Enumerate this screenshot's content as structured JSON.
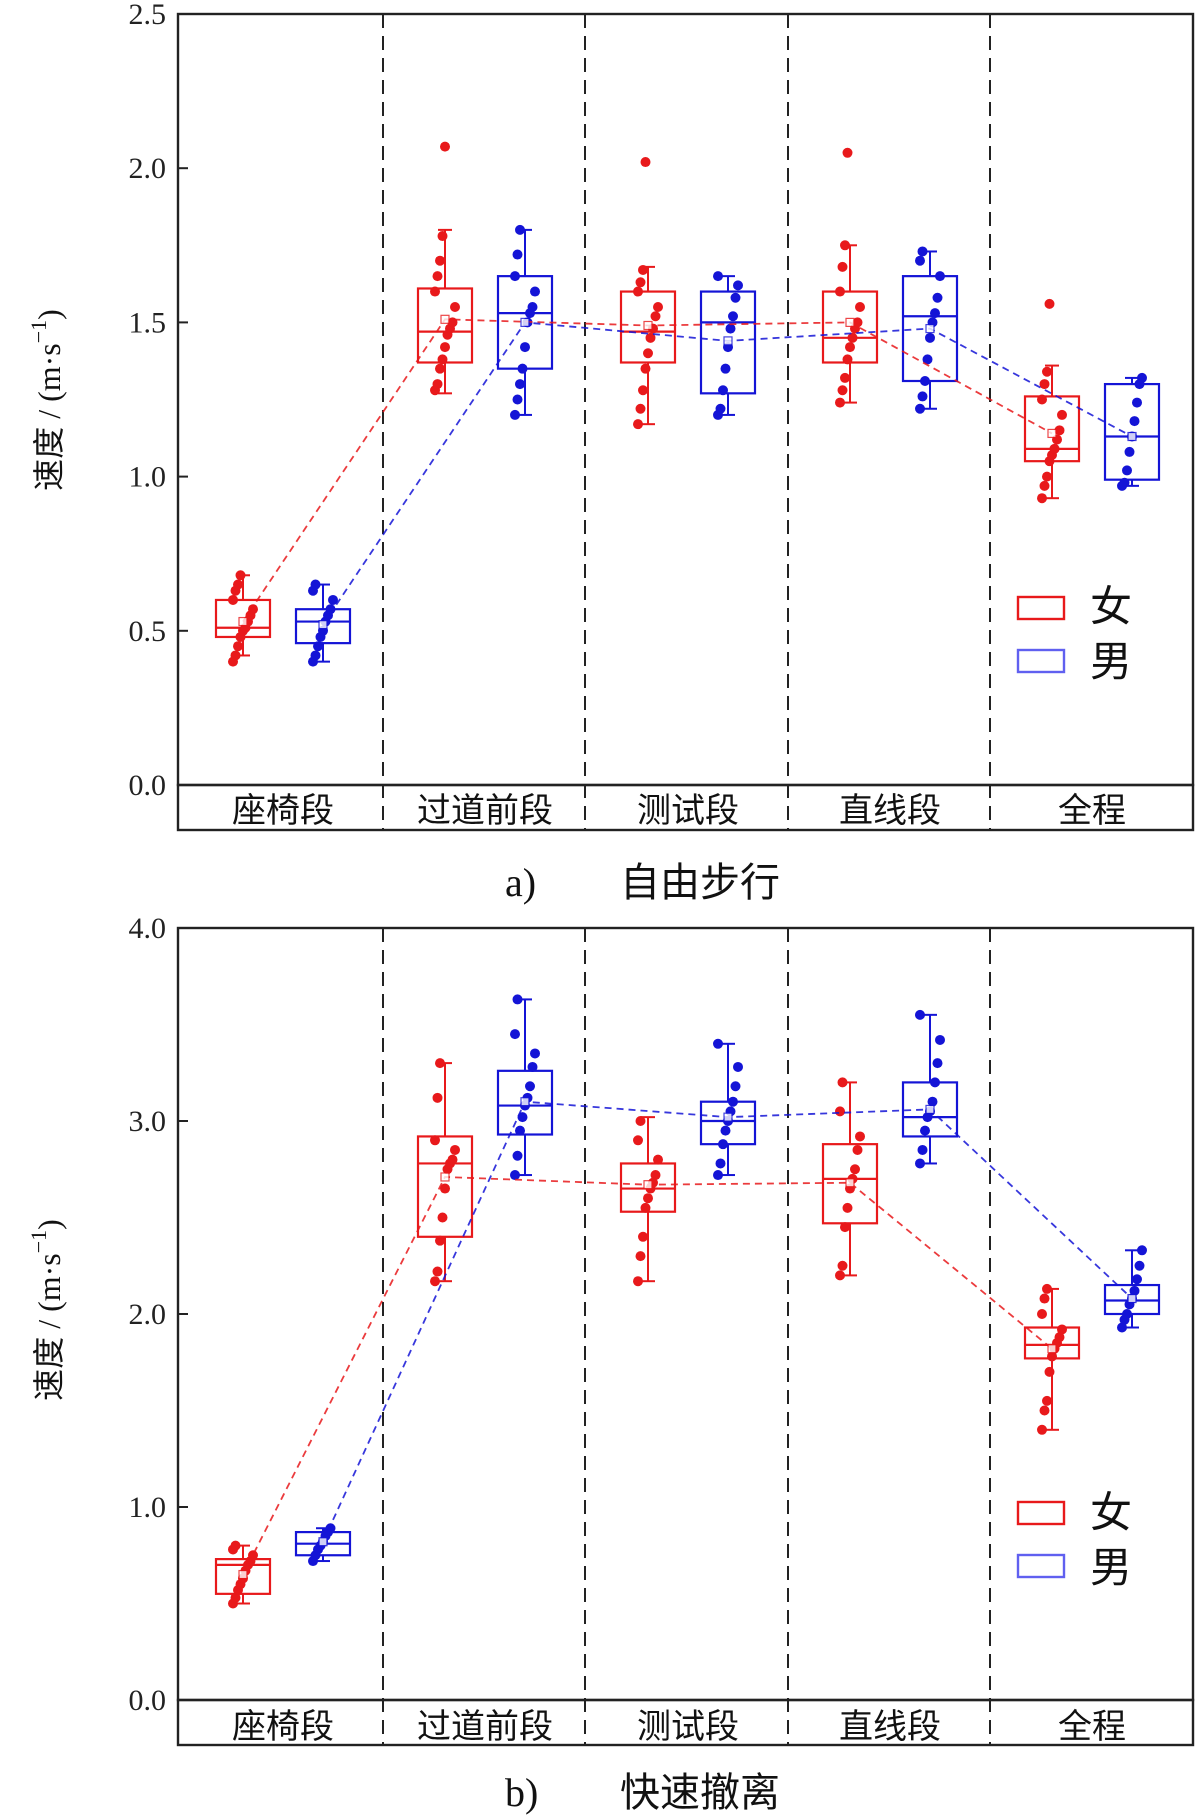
{
  "colors": {
    "female": "#e8191b",
    "male": "#1414d6",
    "axis": "#222222"
  },
  "chart_data": [
    {
      "type": "box",
      "caption_label": "a)",
      "caption_title": "自由步行",
      "ylabel": "速度 / (m·s",
      "ylabel_sup": "−1",
      "ylabel_close": ")",
      "ylim": [
        0.0,
        2.5
      ],
      "yticks": [
        "0.0",
        "0.5",
        "1.0",
        "1.5",
        "2.0",
        "2.5"
      ],
      "categories": [
        "座椅段",
        "过道前段",
        "测试段",
        "直线段",
        "全程"
      ],
      "legend": [
        "女",
        "男"
      ],
      "series": [
        {
          "name": "女",
          "boxes": [
            {
              "min": 0.42,
              "q1": 0.48,
              "median": 0.51,
              "q3": 0.6,
              "max": 0.68,
              "mean": 0.53
            },
            {
              "min": 1.27,
              "q1": 1.37,
              "median": 1.47,
              "q3": 1.61,
              "max": 1.8,
              "mean": 1.51
            },
            {
              "min": 1.17,
              "q1": 1.37,
              "median": 1.47,
              "q3": 1.6,
              "max": 1.68,
              "mean": 1.49
            },
            {
              "min": 1.24,
              "q1": 1.37,
              "median": 1.45,
              "q3": 1.6,
              "max": 1.75,
              "mean": 1.5
            },
            {
              "min": 0.93,
              "q1": 1.05,
              "median": 1.09,
              "q3": 1.26,
              "max": 1.36,
              "mean": 1.14
            }
          ],
          "points": [
            [
              0.4,
              0.42,
              0.45,
              0.48,
              0.5,
              0.51,
              0.53,
              0.55,
              0.57,
              0.6,
              0.63,
              0.65,
              0.68
            ],
            [
              1.28,
              1.3,
              1.35,
              1.38,
              1.42,
              1.46,
              1.48,
              1.5,
              1.55,
              1.6,
              1.65,
              1.7,
              1.78,
              2.07
            ],
            [
              1.17,
              1.22,
              1.28,
              1.35,
              1.4,
              1.45,
              1.48,
              1.52,
              1.55,
              1.6,
              1.63,
              1.67,
              2.02
            ],
            [
              1.24,
              1.28,
              1.32,
              1.38,
              1.42,
              1.45,
              1.48,
              1.5,
              1.55,
              1.6,
              1.68,
              1.75,
              2.05
            ],
            [
              0.93,
              0.97,
              1.0,
              1.05,
              1.07,
              1.09,
              1.12,
              1.15,
              1.2,
              1.25,
              1.3,
              1.34,
              1.56
            ]
          ]
        },
        {
          "name": "男",
          "boxes": [
            {
              "min": 0.4,
              "q1": 0.46,
              "median": 0.53,
              "q3": 0.57,
              "max": 0.65,
              "mean": 0.52
            },
            {
              "min": 1.2,
              "q1": 1.35,
              "median": 1.53,
              "q3": 1.65,
              "max": 1.8,
              "mean": 1.5
            },
            {
              "min": 1.2,
              "q1": 1.27,
              "median": 1.5,
              "q3": 1.6,
              "max": 1.65,
              "mean": 1.44
            },
            {
              "min": 1.22,
              "q1": 1.31,
              "median": 1.52,
              "q3": 1.65,
              "max": 1.73,
              "mean": 1.48
            },
            {
              "min": 0.97,
              "q1": 0.99,
              "median": 1.13,
              "q3": 1.3,
              "max": 1.32,
              "mean": 1.13
            }
          ],
          "points": [
            [
              0.4,
              0.42,
              0.45,
              0.48,
              0.5,
              0.53,
              0.55,
              0.57,
              0.6,
              0.63,
              0.65
            ],
            [
              1.2,
              1.25,
              1.3,
              1.35,
              1.42,
              1.5,
              1.53,
              1.55,
              1.6,
              1.65,
              1.72,
              1.8
            ],
            [
              1.2,
              1.22,
              1.28,
              1.35,
              1.42,
              1.48,
              1.52,
              1.58,
              1.62,
              1.65
            ],
            [
              1.22,
              1.26,
              1.31,
              1.38,
              1.45,
              1.5,
              1.53,
              1.58,
              1.65,
              1.7,
              1.73
            ],
            [
              0.97,
              0.98,
              1.02,
              1.08,
              1.13,
              1.18,
              1.24,
              1.3,
              1.32
            ]
          ]
        }
      ]
    },
    {
      "type": "box",
      "caption_label": "b)",
      "caption_title": "快速撤离",
      "ylabel": "速度 / (m·s",
      "ylabel_sup": "−1",
      "ylabel_close": ")",
      "ylim": [
        0.0,
        4.0
      ],
      "yticks": [
        "0.0",
        "1.0",
        "2.0",
        "3.0",
        "4.0"
      ],
      "categories": [
        "座椅段",
        "过道前段",
        "测试段",
        "直线段",
        "全程"
      ],
      "legend": [
        "女",
        "男"
      ],
      "series": [
        {
          "name": "女",
          "boxes": [
            {
              "min": 0.5,
              "q1": 0.55,
              "median": 0.7,
              "q3": 0.73,
              "max": 0.8,
              "mean": 0.65
            },
            {
              "min": 2.17,
              "q1": 2.4,
              "median": 2.78,
              "q3": 2.92,
              "max": 3.3,
              "mean": 2.71
            },
            {
              "min": 2.17,
              "q1": 2.53,
              "median": 2.65,
              "q3": 2.78,
              "max": 3.02,
              "mean": 2.67
            },
            {
              "min": 2.2,
              "q1": 2.47,
              "median": 2.7,
              "q3": 2.88,
              "max": 3.2,
              "mean": 2.68
            },
            {
              "min": 1.4,
              "q1": 1.77,
              "median": 1.84,
              "q3": 1.93,
              "max": 2.13,
              "mean": 1.82
            }
          ],
          "points": [
            [
              0.5,
              0.53,
              0.57,
              0.6,
              0.63,
              0.67,
              0.7,
              0.72,
              0.75,
              0.78,
              0.8
            ],
            [
              2.17,
              2.22,
              2.38,
              2.5,
              2.65,
              2.75,
              2.78,
              2.8,
              2.85,
              2.9,
              3.12,
              3.3
            ],
            [
              2.17,
              2.3,
              2.4,
              2.55,
              2.6,
              2.65,
              2.68,
              2.72,
              2.8,
              2.9,
              3.0
            ],
            [
              2.2,
              2.25,
              2.45,
              2.55,
              2.65,
              2.7,
              2.75,
              2.85,
              2.92,
              3.05,
              3.2
            ],
            [
              1.4,
              1.5,
              1.55,
              1.7,
              1.78,
              1.82,
              1.85,
              1.88,
              1.92,
              2.0,
              2.08,
              2.13
            ]
          ]
        },
        {
          "name": "男",
          "boxes": [
            {
              "min": 0.72,
              "q1": 0.75,
              "median": 0.81,
              "q3": 0.87,
              "max": 0.89,
              "mean": 0.82
            },
            {
              "min": 2.72,
              "q1": 2.93,
              "median": 3.08,
              "q3": 3.26,
              "max": 3.63,
              "mean": 3.1
            },
            {
              "min": 2.72,
              "q1": 2.88,
              "median": 3.0,
              "q3": 3.1,
              "max": 3.4,
              "mean": 3.02
            },
            {
              "min": 2.78,
              "q1": 2.92,
              "median": 3.02,
              "q3": 3.2,
              "max": 3.55,
              "mean": 3.06
            },
            {
              "min": 1.93,
              "q1": 2.0,
              "median": 2.07,
              "q3": 2.15,
              "max": 2.33,
              "mean": 2.08
            }
          ],
          "points": [
            [
              0.72,
              0.75,
              0.78,
              0.8,
              0.82,
              0.85,
              0.87,
              0.89
            ],
            [
              2.72,
              2.82,
              2.95,
              3.02,
              3.08,
              3.12,
              3.18,
              3.28,
              3.35,
              3.45,
              3.63
            ],
            [
              2.72,
              2.78,
              2.88,
              2.95,
              3.0,
              3.05,
              3.1,
              3.18,
              3.28,
              3.4
            ],
            [
              2.78,
              2.85,
              2.95,
              3.02,
              3.05,
              3.1,
              3.2,
              3.3,
              3.42,
              3.55
            ],
            [
              1.93,
              1.97,
              2.0,
              2.05,
              2.08,
              2.12,
              2.18,
              2.25,
              2.33
            ]
          ]
        }
      ]
    }
  ]
}
